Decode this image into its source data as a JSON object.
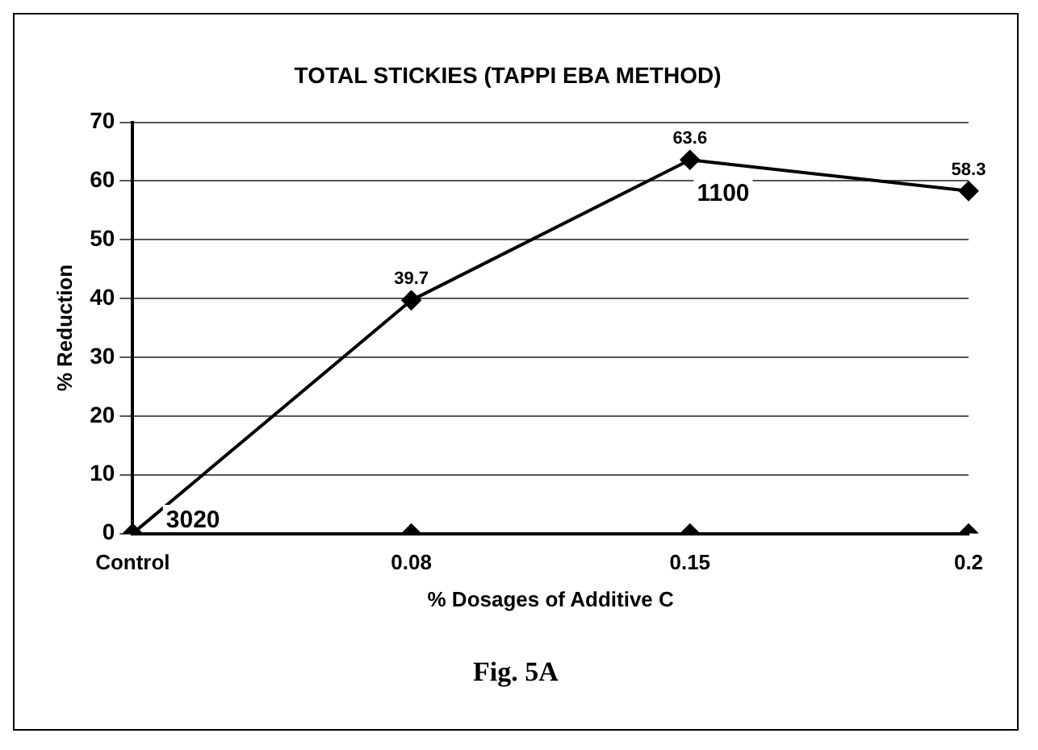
{
  "chart_data": {
    "type": "line",
    "title": "TOTAL STICKIES (TAPPI EBA METHOD)",
    "xlabel": "% Dosages of Additive C",
    "ylabel": "% Reduction",
    "categories": [
      "Control",
      "0.08",
      "0.15",
      "0.2"
    ],
    "series": [
      {
        "color": "#000000",
        "values": [
          0,
          39.7,
          63.6,
          58.3
        ],
        "value_labels": [
          null,
          "39.7",
          "63.6",
          "58.3"
        ]
      },
      {
        "type": "scatter",
        "color": "#000000",
        "values": [
          0,
          0,
          0,
          0
        ]
      }
    ],
    "ylim": [
      0,
      70
    ],
    "yticks": [
      0,
      10,
      20,
      30,
      40,
      50,
      60,
      70
    ],
    "grid": "y",
    "legend": false,
    "marker": "diamond",
    "line_style": "solid",
    "annotations": [
      "3020",
      "1100",
      "Fig. 5A"
    ]
  }
}
